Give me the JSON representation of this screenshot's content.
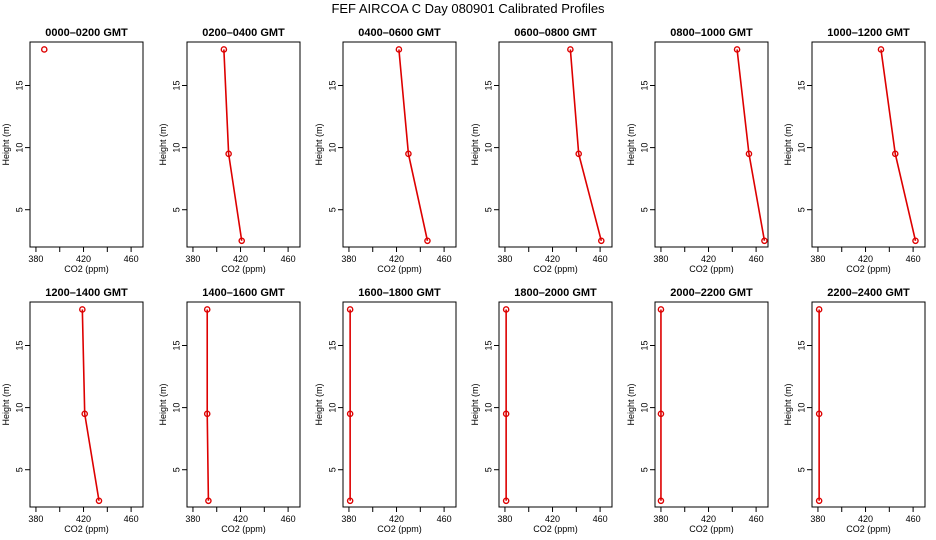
{
  "title": "FEF AIRCOA C  Day 080901  Calibrated Profiles",
  "chart_data": [
    {
      "type": "line",
      "title": "0000–0200 GMT",
      "xlabel": "CO2 (ppm)",
      "ylabel": "Height (m)",
      "xlim": [
        375,
        470
      ],
      "ylim": [
        2,
        18.5
      ],
      "xticks": [
        380,
        420,
        460
      ],
      "yticks": [
        5,
        10,
        15
      ],
      "color": "#dd0000",
      "marker": "open-circle",
      "grid": false,
      "legend": "none",
      "series": [
        {
          "x": [
            387
          ],
          "y": [
            17.9
          ]
        }
      ]
    },
    {
      "type": "line",
      "title": "0200–0400 GMT",
      "xlabel": "CO2 (ppm)",
      "ylabel": "Height (m)",
      "xlim": [
        375,
        470
      ],
      "ylim": [
        2,
        18.5
      ],
      "xticks": [
        380,
        420,
        460
      ],
      "yticks": [
        5,
        10,
        15
      ],
      "color": "#dd0000",
      "marker": "open-circle",
      "grid": false,
      "legend": "none",
      "series": [
        {
          "x": [
            406,
            410,
            421
          ],
          "y": [
            17.9,
            9.5,
            2.5
          ]
        }
      ]
    },
    {
      "type": "line",
      "title": "0400–0600 GMT",
      "xlabel": "CO2 (ppm)",
      "ylabel": "Height (m)",
      "xlim": [
        375,
        470
      ],
      "ylim": [
        2,
        18.5
      ],
      "xticks": [
        380,
        420,
        460
      ],
      "yticks": [
        5,
        10,
        15
      ],
      "color": "#dd0000",
      "marker": "open-circle",
      "grid": false,
      "legend": "none",
      "series": [
        {
          "x": [
            422,
            430,
            446
          ],
          "y": [
            17.9,
            9.5,
            2.5
          ]
        }
      ]
    },
    {
      "type": "line",
      "title": "0600–0800 GMT",
      "xlabel": "CO2 (ppm)",
      "ylabel": "Height (m)",
      "xlim": [
        375,
        470
      ],
      "ylim": [
        2,
        18.5
      ],
      "xticks": [
        380,
        420,
        460
      ],
      "yticks": [
        5,
        10,
        15
      ],
      "color": "#dd0000",
      "marker": "open-circle",
      "grid": false,
      "legend": "none",
      "series": [
        {
          "x": [
            435,
            442,
            461
          ],
          "y": [
            17.9,
            9.5,
            2.5
          ]
        }
      ]
    },
    {
      "type": "line",
      "title": "0800–1000 GMT",
      "xlabel": "CO2 (ppm)",
      "ylabel": "Height (m)",
      "xlim": [
        375,
        470
      ],
      "ylim": [
        2,
        18.5
      ],
      "xticks": [
        380,
        420,
        460
      ],
      "yticks": [
        5,
        10,
        15
      ],
      "color": "#dd0000",
      "marker": "open-circle",
      "grid": false,
      "legend": "none",
      "series": [
        {
          "x": [
            444,
            454,
            467
          ],
          "y": [
            17.9,
            9.5,
            2.5
          ]
        }
      ]
    },
    {
      "type": "line",
      "title": "1000–1200 GMT",
      "xlabel": "CO2 (ppm)",
      "ylabel": "Height (m)",
      "xlim": [
        375,
        470
      ],
      "ylim": [
        2,
        18.5
      ],
      "xticks": [
        380,
        420,
        460
      ],
      "yticks": [
        5,
        10,
        15
      ],
      "color": "#dd0000",
      "marker": "open-circle",
      "grid": false,
      "legend": "none",
      "series": [
        {
          "x": [
            433,
            445,
            462
          ],
          "y": [
            17.9,
            9.5,
            2.5
          ]
        }
      ]
    },
    {
      "type": "line",
      "title": "1200–1400 GMT",
      "xlabel": "CO2 (ppm)",
      "ylabel": "Height (m)",
      "xlim": [
        375,
        470
      ],
      "ylim": [
        2,
        18.5
      ],
      "xticks": [
        380,
        420,
        460
      ],
      "yticks": [
        5,
        10,
        15
      ],
      "color": "#dd0000",
      "marker": "open-circle",
      "grid": false,
      "legend": "none",
      "series": [
        {
          "x": [
            419,
            421,
            433
          ],
          "y": [
            17.9,
            9.5,
            2.5
          ]
        }
      ]
    },
    {
      "type": "line",
      "title": "1400–1600 GMT",
      "xlabel": "CO2 (ppm)",
      "ylabel": "Height (m)",
      "xlim": [
        375,
        470
      ],
      "ylim": [
        2,
        18.5
      ],
      "xticks": [
        380,
        420,
        460
      ],
      "yticks": [
        5,
        10,
        15
      ],
      "color": "#dd0000",
      "marker": "open-circle",
      "grid": false,
      "legend": "none",
      "series": [
        {
          "x": [
            392,
            392,
            393
          ],
          "y": [
            17.9,
            9.5,
            2.5
          ]
        }
      ]
    },
    {
      "type": "line",
      "title": "1600–1800 GMT",
      "xlabel": "CO2 (ppm)",
      "ylabel": "Height (m)",
      "xlim": [
        375,
        470
      ],
      "ylim": [
        2,
        18.5
      ],
      "xticks": [
        380,
        420,
        460
      ],
      "yticks": [
        5,
        10,
        15
      ],
      "color": "#dd0000",
      "marker": "open-circle",
      "grid": false,
      "legend": "none",
      "series": [
        {
          "x": [
            381,
            381,
            381
          ],
          "y": [
            17.9,
            9.5,
            2.5
          ]
        }
      ]
    },
    {
      "type": "line",
      "title": "1800–2000 GMT",
      "xlabel": "CO2 (ppm)",
      "ylabel": "Height (m)",
      "xlim": [
        375,
        470
      ],
      "ylim": [
        2,
        18.5
      ],
      "xticks": [
        380,
        420,
        460
      ],
      "yticks": [
        5,
        10,
        15
      ],
      "color": "#dd0000",
      "marker": "open-circle",
      "grid": false,
      "legend": "none",
      "series": [
        {
          "x": [
            381,
            381,
            381
          ],
          "y": [
            17.9,
            9.5,
            2.5
          ]
        }
      ]
    },
    {
      "type": "line",
      "title": "2000–2200 GMT",
      "xlabel": "CO2 (ppm)",
      "ylabel": "Height (m)",
      "xlim": [
        375,
        470
      ],
      "ylim": [
        2,
        18.5
      ],
      "xticks": [
        380,
        420,
        460
      ],
      "yticks": [
        5,
        10,
        15
      ],
      "color": "#dd0000",
      "marker": "open-circle",
      "grid": false,
      "legend": "none",
      "series": [
        {
          "x": [
            380,
            380,
            380
          ],
          "y": [
            17.9,
            9.5,
            2.5
          ]
        }
      ]
    },
    {
      "type": "line",
      "title": "2200–2400 GMT",
      "xlabel": "CO2 (ppm)",
      "ylabel": "Height (m)",
      "xlim": [
        375,
        470
      ],
      "ylim": [
        2,
        18.5
      ],
      "xticks": [
        380,
        420,
        460
      ],
      "yticks": [
        5,
        10,
        15
      ],
      "color": "#dd0000",
      "marker": "open-circle",
      "grid": false,
      "legend": "none",
      "series": [
        {
          "x": [
            381,
            381,
            381
          ],
          "y": [
            17.9,
            9.5,
            2.5
          ]
        }
      ]
    }
  ]
}
